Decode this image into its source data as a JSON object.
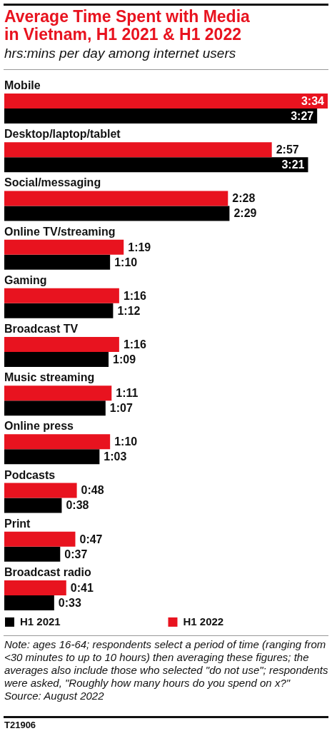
{
  "chart_data": {
    "type": "bar",
    "orientation": "horizontal",
    "title": "Average Time Spent with Media in Vietnam, H1 2021 & H1 2022",
    "subtitle": "hrs:mins per day among internet users",
    "categories": [
      "Mobile",
      "Desktop/laptop/tablet",
      "Social/messaging",
      "Online TV/streaming",
      "Gaming",
      "Broadcast TV",
      "Music streaming",
      "Online press",
      "Podcasts",
      "Print",
      "Broadcast radio"
    ],
    "series": [
      {
        "name": "H1 2021",
        "color": "#000000",
        "values": [
          207,
          201,
          149,
          70,
          72,
          69,
          67,
          63,
          38,
          37,
          33
        ],
        "value_labels": [
          "3:27",
          "3:21",
          "2:29",
          "1:10",
          "1:12",
          "1:09",
          "1:07",
          "1:03",
          "0:38",
          "0:37",
          "0:33"
        ]
      },
      {
        "name": "H1 2022",
        "color": "#e8131f",
        "values": [
          214,
          177,
          148,
          79,
          76,
          76,
          71,
          70,
          48,
          47,
          41
        ],
        "value_labels": [
          "3:34",
          "2:57",
          "2:28",
          "1:19",
          "1:16",
          "1:16",
          "1:11",
          "1:10",
          "0:48",
          "0:47",
          "0:41"
        ]
      }
    ],
    "legend": "bottom",
    "annotations": [
      "Note: ages 16-64; respondents select a period of time (ranging from <30 minutes to up to 10 hours) then averaging these figures; the averages also include those who selected \"do not use\"; respondents were asked, \"Roughly how many hours do you spend on x?\"",
      "Source: August 2022",
      "T21906"
    ]
  }
}
